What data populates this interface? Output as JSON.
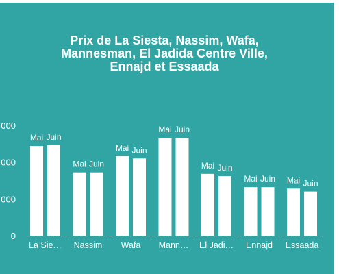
{
  "chart_data": {
    "type": "bar",
    "title_lines": [
      "Prix de La Siesta, Nassim, Wafa,",
      "Mannesman, El Jadida Centre Ville,",
      "Ennajd et Essaada"
    ],
    "categories": [
      "La Sie…",
      "Nassim",
      "Wafa",
      "Mann…",
      "El Jadi…",
      "Ennajd",
      "Essaada"
    ],
    "series": [
      {
        "name": "Mai",
        "values": [
          12200,
          8600,
          10800,
          13300,
          8400,
          6600,
          6400
        ]
      },
      {
        "name": "Juin",
        "values": [
          12300,
          8600,
          10500,
          13300,
          8100,
          6600,
          6000
        ]
      }
    ],
    "yticks": [
      {
        "value": 0,
        "label": "0"
      },
      {
        "value": 5000,
        "label": "000"
      },
      {
        "value": 10000,
        "label": "000"
      },
      {
        "value": 15000,
        "label": "000"
      }
    ],
    "ylim": [
      0,
      15000
    ],
    "grid": false,
    "colors": {
      "background": "#31a5a3",
      "bar": "#ffffff",
      "text": "#ffffff",
      "baseline": "#8fd3d1"
    }
  }
}
